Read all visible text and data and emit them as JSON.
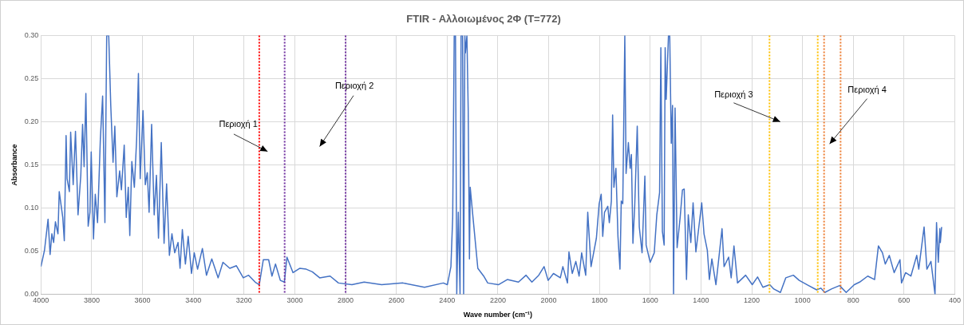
{
  "chart_data": {
    "type": "line",
    "title": "FTIR - Αλλοιωμένος 2Φ (T=772)",
    "xlabel": "Wave number (cm⁻¹)",
    "ylabel": "Absorbance",
    "xlim": [
      4000,
      400
    ],
    "xticks": [
      4000,
      3800,
      3600,
      3400,
      3200,
      3000,
      2800,
      2600,
      2400,
      2200,
      2000,
      1800,
      1600,
      1400,
      1200,
      1000,
      800,
      600,
      400
    ],
    "ylim": [
      0,
      0.3
    ],
    "yticks": [
      {
        "value": 0,
        "label": "0.00"
      },
      {
        "value": 0.05,
        "label": "0.05"
      },
      {
        "value": 0.1,
        "label": "0.10"
      },
      {
        "value": 0.15,
        "label": "0.15"
      },
      {
        "value": 0.2,
        "label": "0.20"
      },
      {
        "value": 0.25,
        "label": "0.25"
      },
      {
        "value": 0.3,
        "label": "0.30"
      }
    ],
    "grid": true,
    "legend": false,
    "marker": "none",
    "line_style": "solid",
    "series": [
      {
        "color": "#4472c4",
        "x": [
          4000,
          3986,
          3972,
          3964,
          3957,
          3950,
          3943,
          3933,
          3928,
          3914,
          3908,
          3901,
          3897,
          3888,
          3883,
          3873,
          3864,
          3854,
          3843,
          3836,
          3830,
          3823,
          3814,
          3807,
          3802,
          3793,
          3786,
          3777,
          3766,
          3757,
          3748,
          3741,
          3733,
          3725,
          3716,
          3709,
          3701,
          3690,
          3683,
          3672,
          3664,
          3656,
          3650,
          3642,
          3632,
          3623,
          3616,
          3609,
          3598,
          3589,
          3581,
          3574,
          3564,
          3554,
          3545,
          3537,
          3526,
          3515,
          3505,
          3494,
          3484,
          3473,
          3460,
          3452,
          3443,
          3431,
          3420,
          3407,
          3396,
          3383,
          3364,
          3348,
          3327,
          3302,
          3283,
          3256,
          3230,
          3203,
          3182,
          3156,
          3140,
          3124,
          3103,
          3090,
          3076,
          3057,
          3041,
          3031,
          3007,
          2981,
          2955,
          2931,
          2902,
          2861,
          2828,
          2775,
          2727,
          2658,
          2574,
          2489,
          2415,
          2399,
          2385,
          2378,
          2372,
          2367,
          2362,
          2356,
          2349,
          2345,
          2339,
          2335,
          2330,
          2328,
          2322,
          2317,
          2312,
          2309,
          2298,
          2279,
          2256,
          2240,
          2198,
          2163,
          2119,
          2089,
          2066,
          2039,
          2018,
          2002,
          1981,
          1954,
          1944,
          1926,
          1920,
          1907,
          1893,
          1880,
          1870,
          1854,
          1846,
          1833,
          1812,
          1801,
          1793,
          1787,
          1780,
          1767,
          1761,
          1753,
          1748,
          1743,
          1735,
          1727,
          1719,
          1714,
          1708,
          1700,
          1695,
          1686,
          1679,
          1674,
          1668,
          1661,
          1651,
          1643,
          1632,
          1621,
          1616,
          1600,
          1584,
          1574,
          1563,
          1558,
          1552,
          1545,
          1541,
          1537,
          1528,
          1523,
          1517,
          1512,
          1508,
          1502,
          1494,
          1482,
          1473,
          1466,
          1457,
          1450,
          1440,
          1431,
          1420,
          1397,
          1388,
          1375,
          1367,
          1357,
          1341,
          1317,
          1309,
          1291,
          1281,
          1270,
          1256,
          1224,
          1198,
          1177,
          1156,
          1129,
          1113,
          1087,
          1066,
          1036,
          1013,
          976,
          944,
          928,
          912,
          886,
          854,
          828,
          796,
          775,
          743,
          716,
          701,
          685,
          674,
          658,
          639,
          616,
          610,
          594,
          573,
          550,
          542,
          521,
          510,
          494,
          478,
          472,
          465,
          459,
          457,
          452
        ],
        "values": [
          0.032,
          0.051,
          0.087,
          0.046,
          0.07,
          0.06,
          0.084,
          0.07,
          0.119,
          0.089,
          0.062,
          0.184,
          0.134,
          0.119,
          0.188,
          0.127,
          0.189,
          0.092,
          0.138,
          0.197,
          0.148,
          0.233,
          0.079,
          0.095,
          0.165,
          0.064,
          0.116,
          0.083,
          0.18,
          0.23,
          0.083,
          0.3,
          0.3,
          0.219,
          0.153,
          0.195,
          0.113,
          0.143,
          0.121,
          0.173,
          0.089,
          0.124,
          0.068,
          0.154,
          0.124,
          0.18,
          0.256,
          0.134,
          0.213,
          0.127,
          0.141,
          0.095,
          0.197,
          0.092,
          0.138,
          0.065,
          0.176,
          0.059,
          0.128,
          0.045,
          0.07,
          0.048,
          0.06,
          0.03,
          0.075,
          0.035,
          0.067,
          0.024,
          0.048,
          0.029,
          0.053,
          0.022,
          0.041,
          0.019,
          0.037,
          0.03,
          0.033,
          0.019,
          0.022,
          0.014,
          0.011,
          0.04,
          0.04,
          0.021,
          0.035,
          0.016,
          0.014,
          0.043,
          0.025,
          0.03,
          0.029,
          0.026,
          0.019,
          0.021,
          0.013,
          0.011,
          0.014,
          0.011,
          0.013,
          0.008,
          0.013,
          0.011,
          0.032,
          0.089,
          0.3,
          0.3,
          0,
          0.095,
          0,
          0.3,
          0.3,
          0,
          0.3,
          0.28,
          0.3,
          0.216,
          0.041,
          0.124,
          0.089,
          0.03,
          0.021,
          0.013,
          0.011,
          0.017,
          0.014,
          0.022,
          0.014,
          0.022,
          0.032,
          0.016,
          0.024,
          0.019,
          0.032,
          0.013,
          0.049,
          0.024,
          0.038,
          0.021,
          0.048,
          0.022,
          0.095,
          0.032,
          0.065,
          0.105,
          0.116,
          0.067,
          0.095,
          0.102,
          0.083,
          0.108,
          0.208,
          0.124,
          0.146,
          0.067,
          0.029,
          0.108,
          0.105,
          0.3,
          0.14,
          0.176,
          0.146,
          0.162,
          0.059,
          0.102,
          0.195,
          0.078,
          0.048,
          0.137,
          0.057,
          0.037,
          0.048,
          0.092,
          0.118,
          0.286,
          0.073,
          0.057,
          0.286,
          0.226,
          0.3,
          0.3,
          0.175,
          0.219,
          0,
          0.216,
          0.054,
          0.089,
          0.121,
          0.122,
          0.017,
          0.092,
          0.06,
          0.106,
          0.049,
          0.106,
          0.07,
          0.051,
          0.017,
          0.041,
          0.011,
          0.076,
          0.032,
          0.043,
          0.019,
          0.056,
          0.013,
          0.022,
          0.011,
          0.02,
          0.008,
          0.011,
          0.006,
          0.002,
          0.019,
          0.022,
          0.016,
          0.01,
          0.005,
          0.007,
          0.002,
          0.006,
          0.01,
          0.002,
          0.011,
          0.014,
          0.021,
          0.017,
          0.056,
          0.048,
          0.035,
          0.045,
          0.025,
          0.04,
          0.013,
          0.025,
          0.021,
          0.045,
          0.029,
          0.078,
          0.029,
          0.038,
          0,
          0.083,
          0.037,
          0.076,
          0.06,
          0.078
        ]
      }
    ],
    "ref_lines": [
      {
        "axis": "x",
        "value": 3140,
        "color": "#ff0000",
        "line_style": "dotted"
      },
      {
        "axis": "x",
        "value": 3040,
        "color": "#7030a0",
        "line_style": "dotted"
      },
      {
        "axis": "x",
        "value": 2800,
        "color": "#7030a0",
        "line_style": "dotted"
      },
      {
        "axis": "x",
        "value": 1130,
        "color": "#ffc000",
        "line_style": "dotted"
      },
      {
        "axis": "x",
        "value": 940,
        "color": "#ffc000",
        "line_style": "dotted"
      },
      {
        "axis": "x",
        "value": 915,
        "color": "#ed7d31",
        "line_style": "dotted"
      },
      {
        "axis": "x",
        "value": 850,
        "color": "#ed7d31",
        "line_style": "dotted"
      }
    ],
    "annotations": [
      "Περιοχή 1",
      "Περιοχή 2",
      "Περιοχή 3",
      "Περιοχή 4"
    ]
  }
}
